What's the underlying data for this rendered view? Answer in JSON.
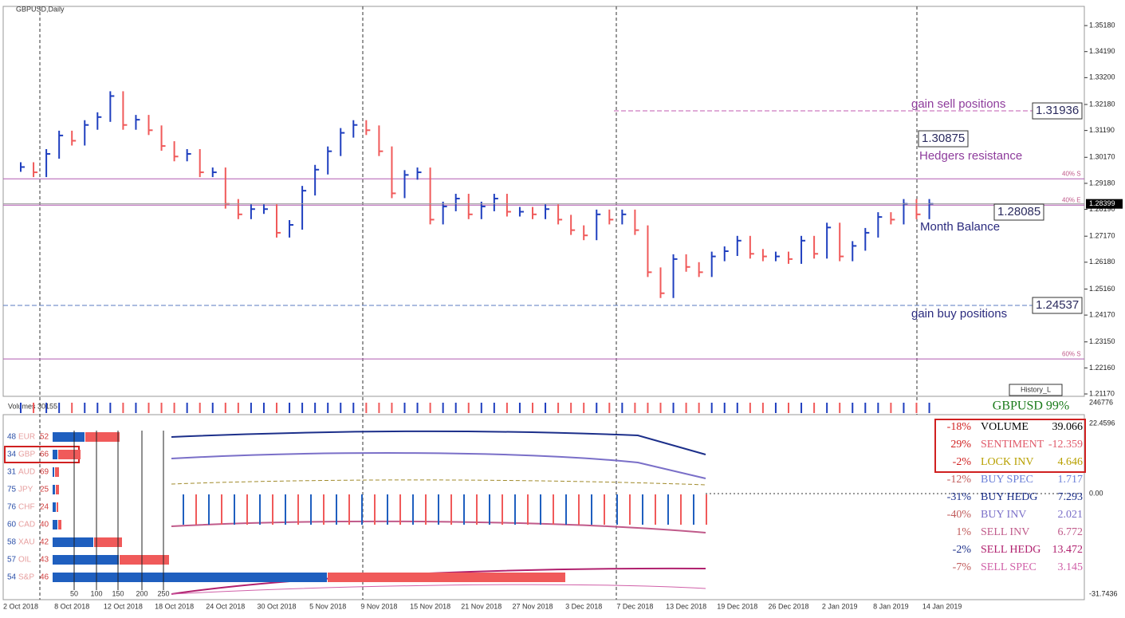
{
  "window": {
    "title": "GBPUSD,Daily",
    "volume_label": "Volumes 30155",
    "symbol_strength": "GBPUSD 99%",
    "history_button": "History_L"
  },
  "chart_data": {
    "type": "bar",
    "categories": [
      "2 Oct 2018",
      null,
      null,
      null,
      "8 Oct 2018",
      null,
      null,
      null,
      "12 Oct 2018",
      null,
      null,
      null,
      "18 Oct 2018",
      null,
      null,
      null,
      "24 Oct 2018",
      null,
      null,
      null,
      "30 Oct 2018",
      null,
      null,
      null,
      "5 Nov 2018",
      null,
      null,
      null,
      "9 Nov 2018",
      null,
      null,
      null,
      "15 Nov 2018",
      null,
      null,
      null,
      "21 Nov 2018",
      null,
      null,
      null,
      "27 Nov 2018",
      null,
      null,
      null,
      "3 Dec 2018",
      null,
      null,
      null,
      "7 Dec 2018",
      null,
      null,
      null,
      "13 Dec 2018",
      null,
      null,
      null,
      "19 Dec 2018",
      null,
      null,
      null,
      "26 Dec 2018",
      null,
      null,
      null,
      "2 Jan 2019",
      null,
      null,
      null,
      "8 Jan 2019",
      null,
      null,
      null,
      "14 Jan 2019"
    ],
    "values": [
      1.298,
      1.296,
      1.303,
      1.31,
      1.308,
      1.314,
      1.317,
      1.325,
      1.314,
      1.316,
      1.312,
      1.306,
      1.302,
      1.303,
      1.296,
      1.296,
      1.284,
      1.28,
      1.282,
      1.282,
      1.273,
      1.276,
      1.289,
      1.297,
      1.304,
      1.311,
      1.314,
      1.312,
      1.304,
      1.288,
      1.295,
      1.296,
      1.278,
      1.283,
      1.286,
      1.28,
      1.283,
      1.286,
      1.281,
      1.281,
      1.28,
      1.282,
      1.278,
      1.274,
      1.272,
      1.28,
      1.278,
      1.28,
      1.274,
      1.258,
      1.25,
      1.263,
      1.26,
      1.258,
      1.264,
      1.266,
      1.27,
      1.265,
      1.264,
      1.264,
      1.263,
      1.27,
      1.265,
      1.275,
      1.264,
      1.268,
      1.273,
      1.279,
      1.278,
      1.284,
      1.28,
      1.284,
      null
    ],
    "up_color": "#1f3fbf",
    "down_color": "#f05a5a",
    "ylim": [
      1.2108,
      1.3591
    ],
    "yticks": [
      {
        "value": 1.3518,
        "label": "1.35180"
      },
      {
        "value": 1.3419,
        "label": "1.34190"
      },
      {
        "value": 1.332,
        "label": "1.33200"
      },
      {
        "value": 1.3218,
        "label": "1.32180"
      },
      {
        "value": 1.3119,
        "label": "1.31190"
      },
      {
        "value": 1.3017,
        "label": "1.30170"
      },
      {
        "value": 1.2918,
        "label": "1.29180"
      },
      {
        "value": 1.2819,
        "label": "1.28190"
      },
      {
        "value": 1.2717,
        "label": "1.27170"
      },
      {
        "value": 1.2618,
        "label": "1.26180"
      },
      {
        "value": 1.2516,
        "label": "1.25160"
      },
      {
        "value": 1.2417,
        "label": "1.24170"
      },
      {
        "value": 1.2315,
        "label": "1.23150"
      },
      {
        "value": 1.2216,
        "label": "1.22160"
      },
      {
        "value": 1.2117,
        "label": "1.21170"
      }
    ],
    "current_price": 1.28399,
    "levels": [
      {
        "value": 1.31936,
        "note": "gain sell positions"
      },
      {
        "value": 1.30875,
        "note": "Hedgers resistance"
      },
      {
        "value": 1.28085,
        "note": "Month Balance"
      },
      {
        "value": 1.24537,
        "note": "gain buy positions"
      }
    ],
    "zones": [
      {
        "price": 1.2935,
        "label": "40% S"
      },
      {
        "price": 1.2835,
        "label": "40% E"
      },
      {
        "price": 1.225,
        "label": "60% S"
      }
    ]
  },
  "indicator": {
    "axis_labels": [
      "246776",
      "22.4596",
      "0.00",
      "-31.7436"
    ],
    "rows": [
      [
        "-18%",
        "VOLUME",
        "39.066",
        "#000000"
      ],
      [
        "29%",
        "SENTIMENT",
        "-12.359",
        "#e05a6a"
      ],
      [
        "-2%",
        "LOCK INV",
        "4.646",
        "#b8a000"
      ],
      [
        "-12%",
        "BUY SPEC",
        "1.717",
        "#6a7fd8"
      ],
      [
        "-31%",
        "BUY HEDG",
        "7.293",
        "#1c2f8a"
      ],
      [
        "-40%",
        "BUY INV",
        "2.021",
        "#7a6fc8"
      ],
      [
        "1%",
        "SELL INV",
        "6.772",
        "#c05a8a"
      ],
      [
        "-2%",
        "SELL HEDG",
        "13.472",
        "#b0206e"
      ],
      [
        "-7%",
        "SELL SPEC",
        "3.145",
        "#d060a8"
      ]
    ],
    "currencies": [
      [
        48,
        "EUR",
        52
      ],
      [
        34,
        "GBP",
        66
      ],
      [
        31,
        "AUD",
        69
      ],
      [
        75,
        "JPY",
        25
      ],
      [
        76,
        "CHF",
        24
      ],
      [
        60,
        "CAD",
        40
      ],
      [
        58,
        "XAU",
        42
      ],
      [
        57,
        "OIL",
        43
      ],
      [
        54,
        "S&P",
        46
      ]
    ],
    "scale": [
      50,
      100,
      150,
      200,
      250
    ]
  }
}
